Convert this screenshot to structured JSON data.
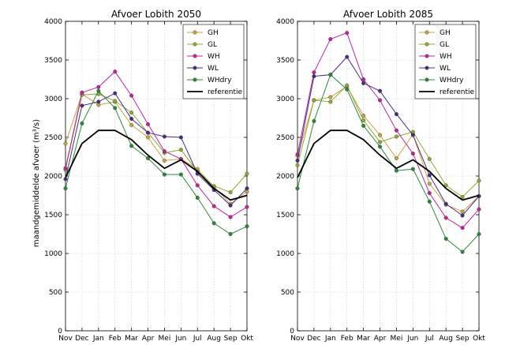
{
  "chart_data": {
    "type": "line",
    "ylabel": "maandgemiddelde afvoer (m³/s)",
    "ylim": [
      0,
      4000
    ],
    "yticks": [
      "0",
      "500",
      "1000",
      "1500",
      "2000",
      "2500",
      "3000",
      "3500",
      "4000"
    ],
    "categories": [
      "Nov",
      "Dec",
      "Jan",
      "Feb",
      "Mar",
      "Apr",
      "Mei",
      "Jun",
      "Jul",
      "Aug",
      "Sep",
      "Okt"
    ],
    "grid": true,
    "legend_position": "top-right",
    "panels": [
      {
        "title": "Afvoer Lobith 2050",
        "series": [
          {
            "name": "GH",
            "color": "#c9a23f",
            "marker": true,
            "values": [
              2420,
              3060,
              2920,
              2960,
              2660,
              2500,
              2200,
              2220,
              2090,
              1860,
              1640,
              1800
            ]
          },
          {
            "name": "GL",
            "color": "#8faa2e",
            "marker": true,
            "values": [
              2080,
              3050,
              3060,
              2970,
              2820,
              2560,
              2300,
              2340,
              2060,
              1870,
              1790,
              2030
            ]
          },
          {
            "name": "WH",
            "color": "#c0239e",
            "marker": true,
            "values": [
              2100,
              3080,
              3150,
              3350,
              3040,
              2670,
              2320,
              2220,
              1880,
              1610,
              1470,
              1600
            ]
          },
          {
            "name": "WL",
            "color": "#4c2a84",
            "marker": true,
            "values": [
              1960,
              2910,
              2960,
              3070,
              2740,
              2560,
              2510,
              2500,
              2030,
              1820,
              1620,
              1840
            ]
          },
          {
            "name": "WHdry",
            "color": "#2a8a3a",
            "marker": true,
            "values": [
              1840,
              2680,
              3100,
              2880,
              2390,
              2230,
              2020,
              2020,
              1720,
              1390,
              1250,
              1350
            ]
          },
          {
            "name": "referentie",
            "color": "#000000",
            "marker": false,
            "values": [
              1980,
              2420,
              2590,
              2590,
              2470,
              2270,
              2100,
              2210,
              2060,
              1840,
              1690,
              1750
            ]
          }
        ]
      },
      {
        "title": "Afvoer Lobith 2085",
        "series": [
          {
            "name": "GH",
            "color": "#c9a23f",
            "marker": true,
            "values": [
              2260,
              2980,
              3020,
              3160,
              2780,
              2530,
              2230,
              2540,
              1900,
              1630,
              1540,
              1740
            ]
          },
          {
            "name": "GL",
            "color": "#8faa2e",
            "marker": true,
            "values": [
              2140,
              2980,
              2960,
              3170,
              2720,
              2440,
              2510,
              2570,
              2220,
              1880,
              1730,
              1940
            ]
          },
          {
            "name": "WH",
            "color": "#c0239e",
            "marker": true,
            "values": [
              2280,
              3340,
              3770,
              3850,
              3250,
              2980,
              2590,
              2290,
              1780,
              1460,
              1330,
              1570
            ]
          },
          {
            "name": "WL",
            "color": "#4c2a84",
            "marker": true,
            "values": [
              2200,
              3290,
              3310,
              3540,
              3200,
              3100,
              2800,
              2530,
              2010,
              1640,
              1490,
              1740
            ]
          },
          {
            "name": "WHdry",
            "color": "#2a8a3a",
            "marker": true,
            "values": [
              1840,
              2710,
              3310,
              3120,
              2650,
              2380,
              2070,
              2090,
              1670,
              1190,
              1020,
              1250
            ]
          },
          {
            "name": "referentie",
            "color": "#000000",
            "marker": false,
            "values": [
              1980,
              2420,
              2590,
              2590,
              2470,
              2270,
              2100,
              2210,
              2060,
              1840,
              1690,
              1750
            ]
          }
        ]
      }
    ]
  }
}
